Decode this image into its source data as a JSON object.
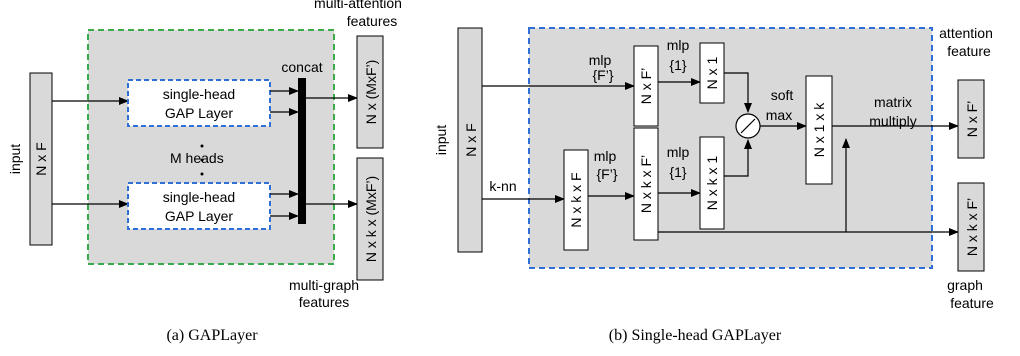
{
  "panel_a": {
    "caption": "(a)  GAPLayer",
    "input_label": "input",
    "input_box": "N x F",
    "head_block_line1": "single-head",
    "head_block_line2": "GAP Layer",
    "m_heads": "M heads",
    "concat": "concat",
    "attention_out_title_line1": "multi-attention",
    "attention_out_title_line2": "features",
    "attention_out_box": "N x (MxF’)",
    "graph_out_box": "N x k x (MxF’)",
    "graph_out_title_line1": "multi-graph",
    "graph_out_title_line2": "features"
  },
  "panel_b": {
    "caption": "(b)  Single-head GAPLayer",
    "input_label": "input",
    "input_box": "N x F",
    "knn": "k-nn",
    "mlp_top_1": "mlp",
    "mlp_top_1_dim": "{F’}",
    "box_nxf": "N x F’",
    "mlp_top_2": "mlp",
    "mlp_top_2_dim": "{1}",
    "box_nx1": "N x 1",
    "box_nxkxf": "N x k x F",
    "mlp_bot_1": "mlp",
    "mlp_bot_1_dim": "{F’}",
    "box_nxkxf2": "N x k x F’",
    "mlp_bot_2": "mlp",
    "mlp_bot_2_dim": "{1}",
    "box_nxkx1": "N x k x 1",
    "softmax_line1": "soft",
    "softmax_line2": "max",
    "box_nx1xk": "N x 1 x k",
    "matmul_line1": "matrix",
    "matmul_line2": "multiply",
    "attention_title_line1": "attention",
    "attention_title_line2": "feature",
    "attention_box": "N x F’",
    "graph_box": "N x k x F’",
    "graph_title_line1": "graph",
    "graph_title_line2": "feature"
  },
  "colors": {
    "panel_fill": "#d9d9d9",
    "green_dash": "#3aaa4a",
    "blue_dash": "#2f6fd6",
    "box_fill": "#d9d9d9"
  }
}
